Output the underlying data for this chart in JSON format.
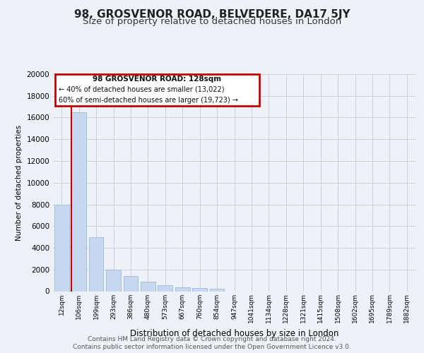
{
  "title": "98, GROSVENOR ROAD, BELVEDERE, DA17 5JY",
  "subtitle": "Size of property relative to detached houses in London",
  "xlabel": "Distribution of detached houses by size in London",
  "ylabel": "Number of detached properties",
  "bar_color": "#c6d9f0",
  "bar_edge_color": "#9ab8d8",
  "vline_color": "#cc0000",
  "annotation_title": "98 GROSVENOR ROAD: 128sqm",
  "annotation_line1": "← 40% of detached houses are smaller (13,022)",
  "annotation_line2": "60% of semi-detached houses are larger (19,723) →",
  "annotation_box_color": "#cc0000",
  "footer1": "Contains HM Land Registry data © Crown copyright and database right 2024.",
  "footer2": "Contains public sector information licensed under the Open Government Licence v3.0.",
  "background_color": "#eef2f8",
  "plot_bg_color": "#eef2f8",
  "categories": [
    "12sqm",
    "106sqm",
    "199sqm",
    "293sqm",
    "386sqm",
    "480sqm",
    "573sqm",
    "667sqm",
    "760sqm",
    "854sqm",
    "947sqm",
    "1041sqm",
    "1134sqm",
    "1228sqm",
    "1321sqm",
    "1415sqm",
    "1508sqm",
    "1602sqm",
    "1695sqm",
    "1789sqm",
    "1882sqm"
  ],
  "values": [
    8000,
    16500,
    5000,
    2000,
    1400,
    900,
    550,
    350,
    280,
    220,
    0,
    0,
    0,
    0,
    0,
    0,
    0,
    0,
    0,
    0,
    0
  ],
  "ylim": [
    0,
    20000
  ],
  "yticks": [
    0,
    2000,
    4000,
    6000,
    8000,
    10000,
    12000,
    14000,
    16000,
    18000,
    20000
  ],
  "vline_bar_index": 1,
  "grid_color": "#c8d0dc",
  "title_fontsize": 11,
  "subtitle_fontsize": 9.5
}
